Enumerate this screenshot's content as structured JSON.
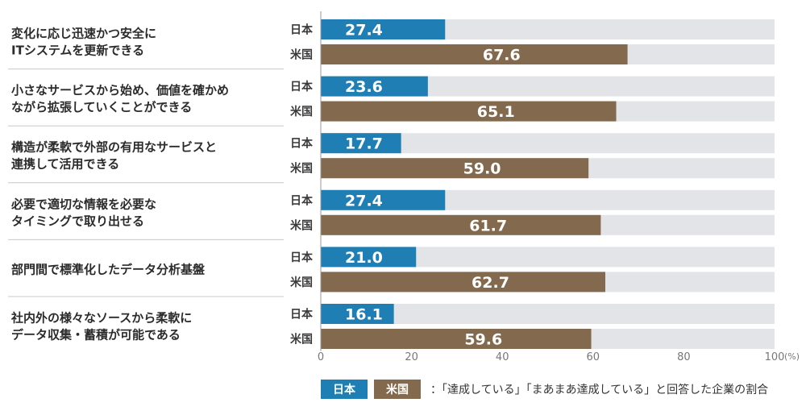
{
  "chart_data": {
    "type": "bar",
    "orientation": "horizontal",
    "categories": [
      [
        "変化に応じ迅速かつ安全に",
        "ITシステムを更新できる"
      ],
      [
        "小さなサービスから始め、価値を確かめ",
        "ながら拡張していくことができる"
      ],
      [
        "構造が柔軟で外部の有用なサービスと",
        "連携して活用できる"
      ],
      [
        "必要で適切な情報を必要な",
        "タイミングで取り出せる"
      ],
      [
        "部門間で標準化したデータ分析基盤"
      ],
      [
        "社内外の様々なソースから柔軟に",
        "データ収集・蓄積が可能である"
      ]
    ],
    "series": [
      {
        "name": "日本",
        "color": "#1f7fb4",
        "values": [
          27.4,
          23.6,
          17.7,
          27.4,
          21.0,
          16.1
        ]
      },
      {
        "name": "米国",
        "color": "#83694e",
        "values": [
          67.6,
          65.1,
          59.0,
          61.7,
          62.7,
          59.6
        ]
      }
    ],
    "xlim": [
      0,
      100
    ],
    "xticks": [
      "0",
      "20",
      "40",
      "60",
      "80",
      "100"
    ],
    "xunit": "(%)",
    "track_color": "#e2e4e8",
    "legend_note": "：「達成している」「まあまあ達成している」と回答した企業の割合"
  }
}
